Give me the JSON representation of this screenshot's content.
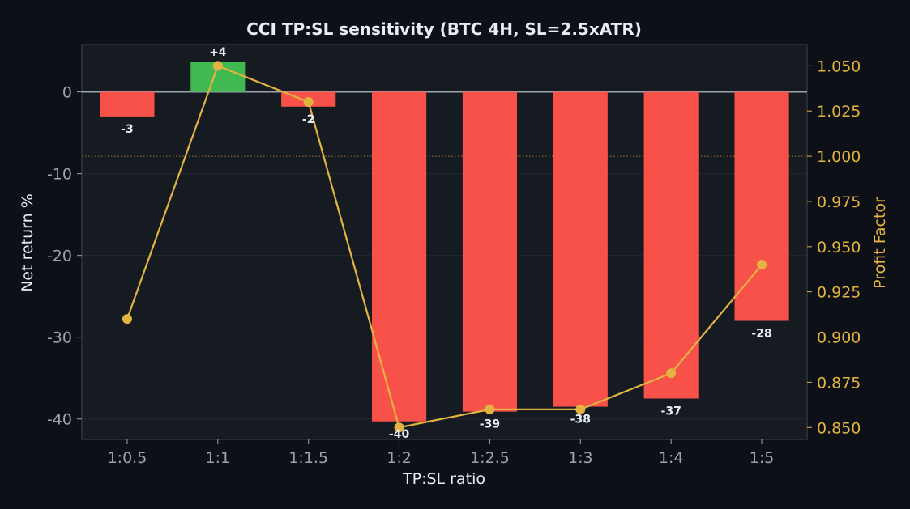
{
  "chart_data": {
    "type": "bar",
    "title": "CCI TP:SL sensitivity (BTC 4H, SL=2.5xATR)",
    "xlabel": "TP:SL ratio",
    "ylabel": "Net return %",
    "ylabel_right": "Profit Factor",
    "categories": [
      "1:0.5",
      "1:1",
      "1:1.5",
      "1:2",
      "1:2.5",
      "1:3",
      "1:4",
      "1:5"
    ],
    "values": [
      -3,
      3.7,
      -1.8,
      -40.3,
      -39.1,
      -38.5,
      -37.5,
      -28
    ],
    "value_labels": [
      "-3",
      "+4",
      "-2",
      "-40",
      "-39",
      "-38",
      "-37",
      "-28"
    ],
    "profit_factor": [
      0.91,
      1.05,
      1.03,
      0.85,
      0.86,
      0.86,
      0.88,
      0.94
    ],
    "ylim": [
      -42.5,
      5.8
    ],
    "ylim_right": [
      0.8434,
      1.0618
    ],
    "yticks": [
      0,
      -10,
      -20,
      -30,
      -40
    ],
    "yticks_right": [
      1.05,
      1.025,
      1.0,
      0.975,
      0.95,
      0.925,
      0.9,
      0.875,
      0.85
    ],
    "reference_line_pf": 1.0,
    "colors": {
      "positive": "#3fb950",
      "negative": "#f85149",
      "line": "#e3b341",
      "panel": "#161b22",
      "background": "#0d1117"
    },
    "grid": true
  }
}
